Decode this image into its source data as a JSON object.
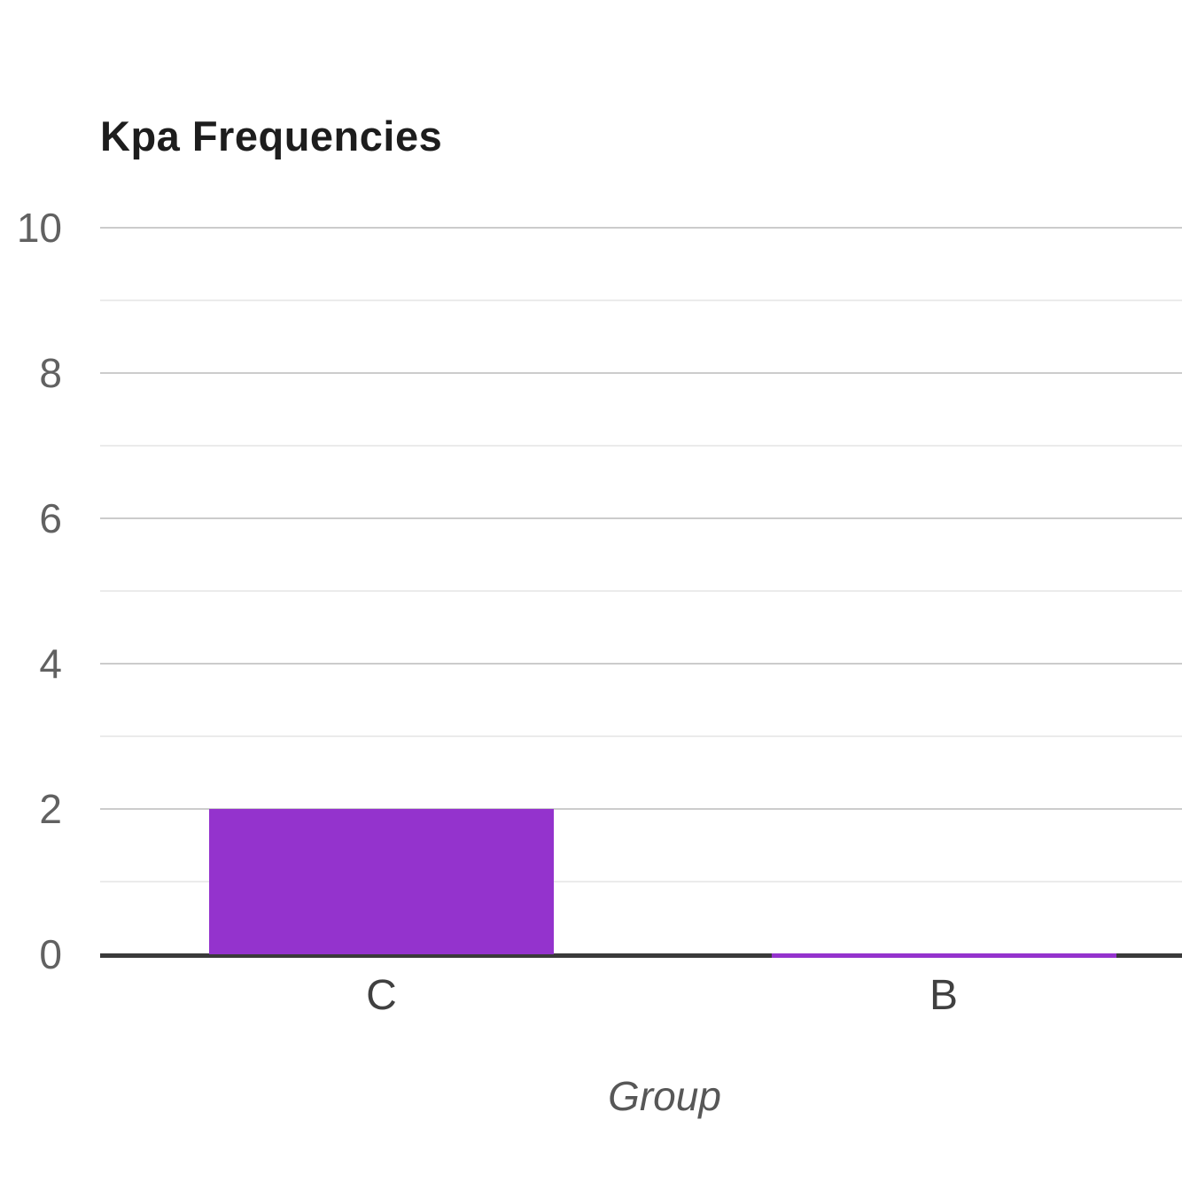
{
  "chart_data": {
    "type": "bar",
    "title": "Kpa Frequencies",
    "xlabel": "Group",
    "ylabel": "",
    "categories": [
      "C",
      "B"
    ],
    "values": [
      2,
      0
    ],
    "ylim": [
      0,
      10
    ],
    "yticks": [
      0,
      2,
      4,
      6,
      8,
      10
    ],
    "minor_ticks": [
      1,
      3,
      5,
      7,
      9
    ],
    "grid": true,
    "legend_position": "none",
    "orientation": "vertical",
    "colors": {
      "bar": "#9433CD",
      "axis_line": "#3a3a3a",
      "major_gridline": "#cccccc",
      "minor_gridline": "#ebebeb",
      "title_text": "#1d1d1d",
      "tick_text": "#616161",
      "category_text": "#404040",
      "axis_title_text": "#575757",
      "background": "#ffffff"
    }
  }
}
